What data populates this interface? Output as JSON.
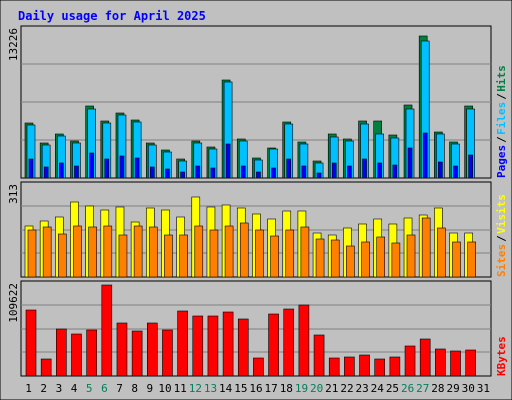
{
  "title": "Daily usage for April 2025",
  "colors": {
    "background": "#c0c0c0",
    "title": "#0000ff",
    "hits": "#008040",
    "files": "#00c0ff",
    "pages": "#0000ff",
    "visits": "#ffff00",
    "sites": "#ff8000",
    "kbytes": "#ff0000",
    "weekend_label": "#00805c"
  },
  "chart_data": {
    "type": "bar",
    "days": [
      "1",
      "2",
      "3",
      "4",
      "5",
      "6",
      "7",
      "8",
      "9",
      "10",
      "11",
      "12",
      "13",
      "14",
      "15",
      "16",
      "17",
      "18",
      "19",
      "20",
      "21",
      "22",
      "23",
      "24",
      "25",
      "26",
      "27",
      "28",
      "29",
      "30",
      "31"
    ],
    "weekend_days": [
      "5",
      "6",
      "12",
      "13",
      "19",
      "20",
      "26",
      "27"
    ],
    "panels": [
      {
        "name": "hits-files-pages",
        "max_label": "13226",
        "ymax": 13226,
        "right_labels": [
          "Hits",
          "Files",
          "Pages"
        ],
        "series": [
          {
            "name": "Hits",
            "values": [
              4900,
              3100,
              3900,
              3300,
              6400,
              5100,
              5800,
              5200,
              3100,
              2500,
              1700,
              3300,
              2800,
              8800,
              3500,
              1800,
              2700,
              5000,
              3200,
              1500,
              3900,
              3500,
              5100,
              5100,
              3800,
              6500,
              12700,
              4100,
              3200,
              6400,
              0
            ]
          },
          {
            "name": "Files",
            "values": [
              4700,
              2950,
              3750,
              3100,
              6200,
              4900,
              5600,
              5000,
              2950,
              2300,
              1500,
              3100,
              2600,
              8600,
              3350,
              1650,
              2550,
              4800,
              3000,
              1350,
              3700,
              3350,
              4800,
              3900,
              3600,
              6200,
              12200,
              3950,
              3050,
              6200,
              0
            ]
          },
          {
            "name": "Pages",
            "values": [
              1700,
              1000,
              1300,
              1100,
              2200,
              1700,
              2000,
              1800,
              1000,
              800,
              500,
              1100,
              900,
              3000,
              1100,
              550,
              900,
              1700,
              1050,
              450,
              1300,
              1100,
              1700,
              1300,
              1200,
              2700,
              4000,
              1400,
              1050,
              2100,
              0
            ]
          }
        ]
      },
      {
        "name": "visits-sites",
        "max_label": "313",
        "ymax": 313,
        "right_labels": [
          "Visits",
          "Sites"
        ],
        "series": [
          {
            "name": "Visits",
            "values": [
              175,
              192,
              205,
              257,
              243,
              230,
              242,
              190,
              237,
              230,
              207,
              276,
              242,
              248,
              236,
              217,
              198,
              227,
              228,
              150,
              144,
              169,
              183,
              199,
              181,
              204,
              214,
              236,
              152,
              152,
              0
            ]
          },
          {
            "name": "Sites",
            "values": [
              162,
              172,
              147,
              175,
              173,
              174,
              145,
              174,
              172,
              145,
              145,
              175,
              160,
              176,
              185,
              163,
              141,
              161,
              172,
              129,
              128,
              107,
              120,
              139,
              118,
              145,
              204,
              167,
              121,
              121,
              0
            ]
          }
        ]
      },
      {
        "name": "kbytes",
        "max_label": "109622",
        "ymax": 109622,
        "right_labels": [
          "KBytes"
        ],
        "series": [
          {
            "name": "KBytes",
            "values": [
              79000,
              20000,
              57000,
              50000,
              56000,
              109622,
              64000,
              54000,
              64000,
              55000,
              78000,
              72000,
              72000,
              77000,
              69000,
              22000,
              75000,
              81000,
              86000,
              49000,
              22000,
              23000,
              25000,
              21000,
              23000,
              36000,
              44000,
              33000,
              30000,
              31000,
              0
            ]
          }
        ]
      }
    ]
  }
}
